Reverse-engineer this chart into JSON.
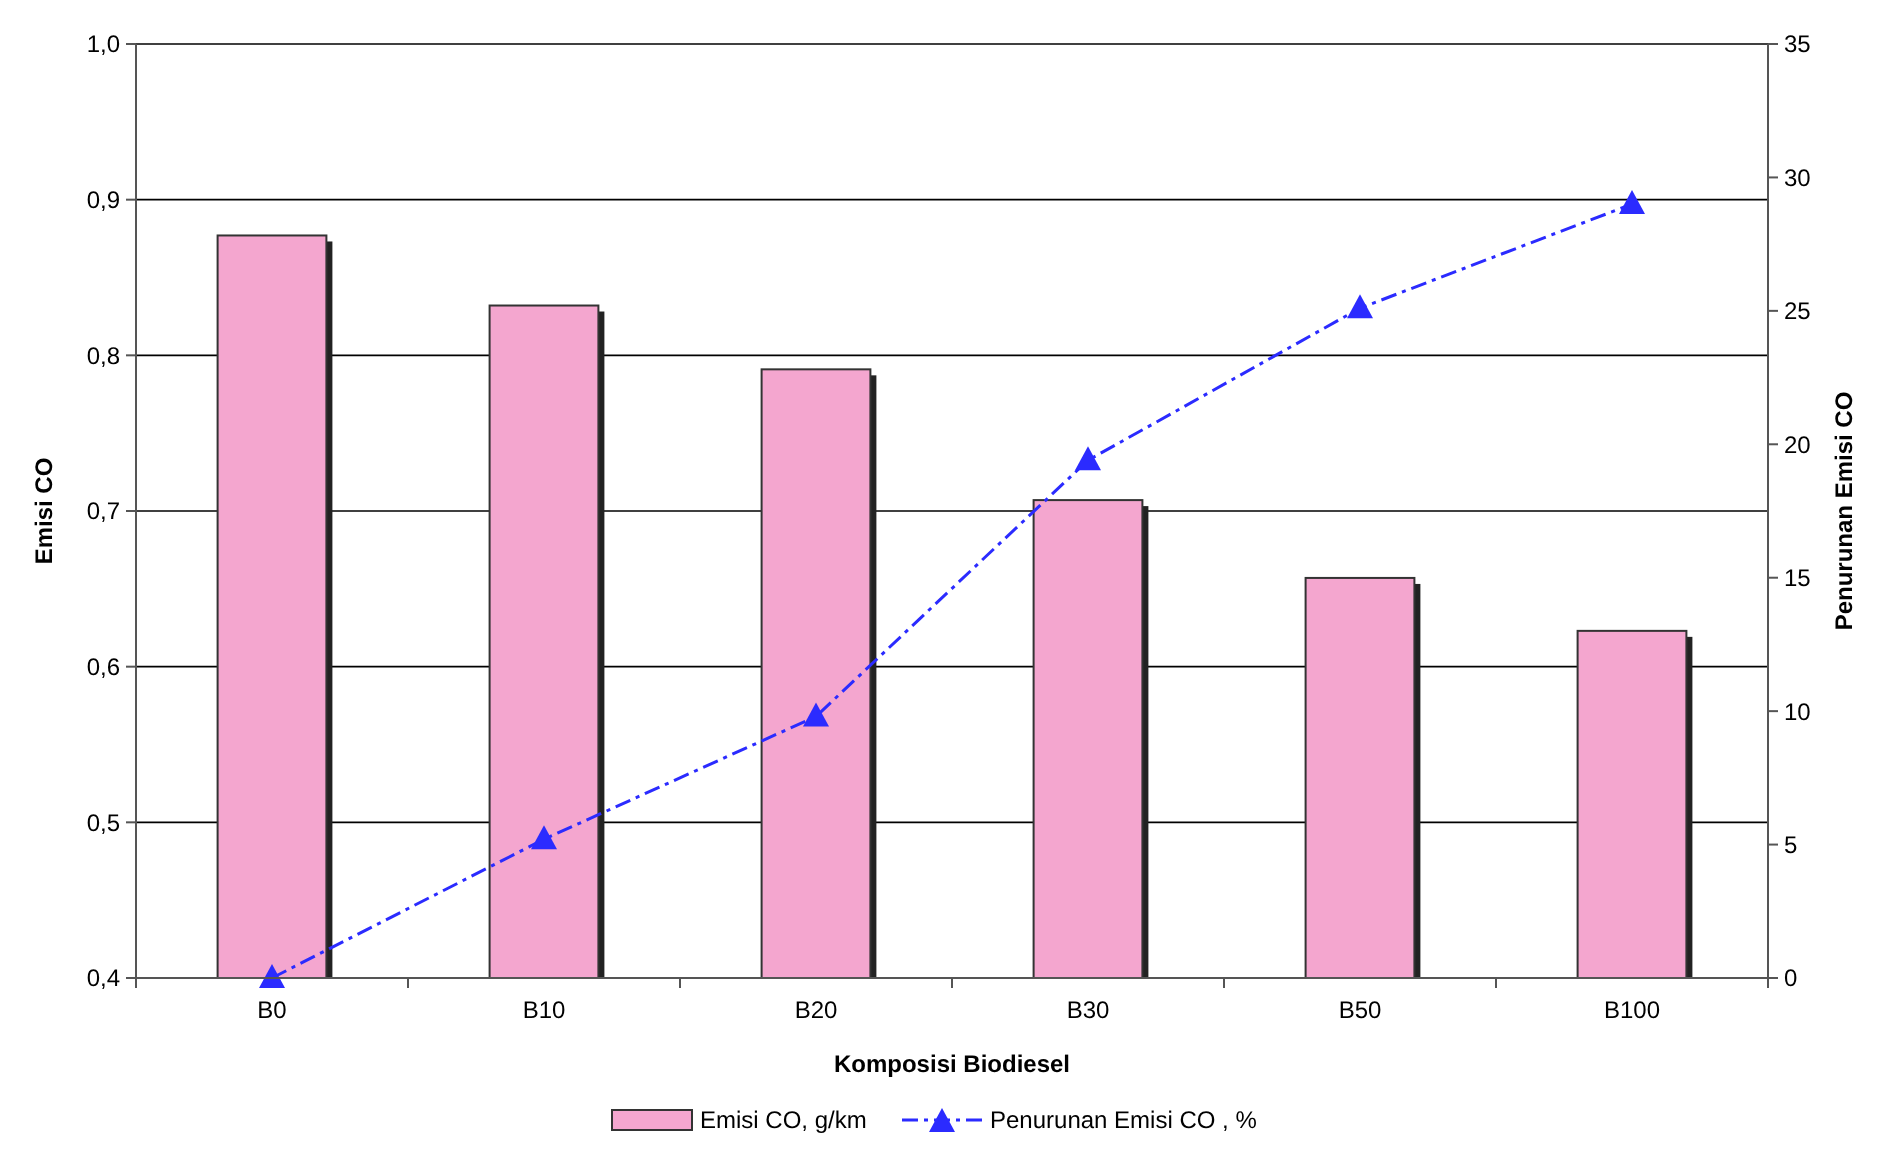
{
  "chart_data": {
    "type": "bar",
    "xlabel": "Komposisi Biodiesel",
    "ylabel": "Emisi CO",
    "y2label": "Penurunan Emisi CO",
    "categories": [
      "B0",
      "B10",
      "B20",
      "B30",
      "B50",
      "B100"
    ],
    "series": [
      {
        "name": "Emisi CO, g/km",
        "color": "#f4a6cf",
        "values": [
          0.877,
          0.832,
          0.791,
          0.707,
          0.657,
          0.623
        ]
      },
      {
        "name": "Penurunan Emisi CO , %",
        "type": "line",
        "axis": "y2",
        "color": "#2b2bff",
        "marker": "triangle",
        "line_style": "dashdot",
        "values": [
          0,
          5.2,
          9.8,
          19.4,
          25.1,
          29.0
        ]
      }
    ],
    "ylim": [
      0.4,
      1.0
    ],
    "yticks": [
      {
        "value": 0.4,
        "label": "0,4"
      },
      {
        "value": 0.5,
        "label": "0,5"
      },
      {
        "value": 0.6,
        "label": "0,6"
      },
      {
        "value": 0.7,
        "label": "0,7"
      },
      {
        "value": 0.8,
        "label": "0,8"
      },
      {
        "value": 0.9,
        "label": "0,9"
      },
      {
        "value": 1.0,
        "label": "1,0"
      }
    ],
    "y2lim": [
      0,
      35
    ],
    "y2ticks": [
      0,
      5,
      10,
      15,
      20,
      25,
      30,
      35
    ],
    "grid": "y",
    "legend": "bottom"
  }
}
